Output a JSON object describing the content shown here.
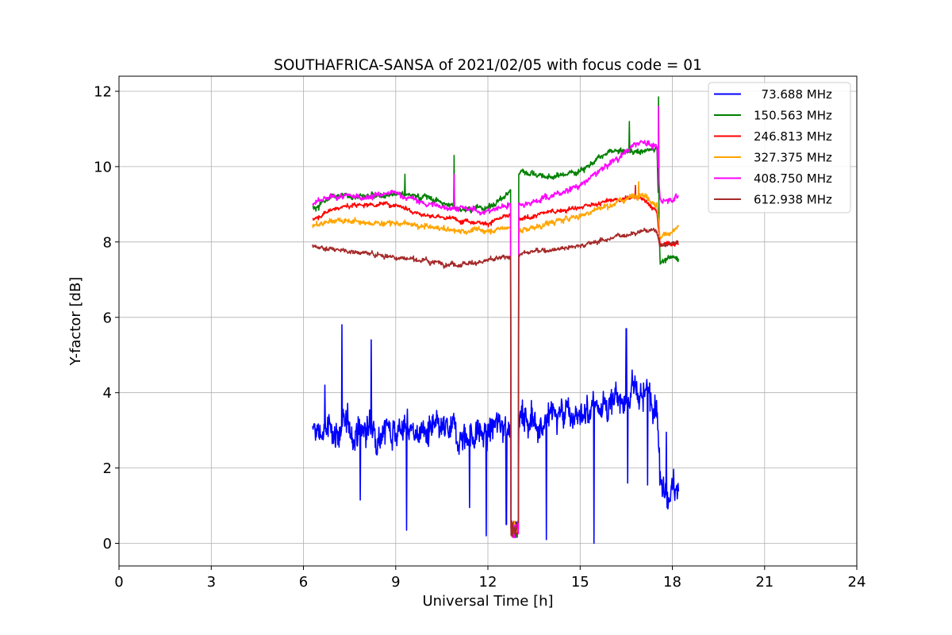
{
  "chart_data": {
    "type": "line",
    "title": "SOUTHAFRICA-SANSA of 2021/02/05 with focus code = 01",
    "xlabel": "Universal Time [h]",
    "ylabel": "Y-factor [dB]",
    "xlim": [
      0,
      24
    ],
    "ylim": [
      -0.6,
      12.4
    ],
    "xticks": [
      0,
      3,
      6,
      9,
      12,
      15,
      18,
      21,
      24
    ],
    "yticks": [
      0,
      2,
      4,
      6,
      8,
      10,
      12
    ],
    "grid": true,
    "legend_position": "top-right",
    "dropout": {
      "start": 12.75,
      "end": 13.0
    },
    "series": [
      {
        "name": "  73.688 MHz",
        "color": "#0000ff",
        "noise": 0.55,
        "points": [
          [
            6.3,
            2.9
          ],
          [
            7.0,
            3.0
          ],
          [
            8.0,
            3.0
          ],
          [
            9.0,
            3.1
          ],
          [
            10.0,
            2.9
          ],
          [
            11.0,
            2.9
          ],
          [
            12.0,
            2.9
          ],
          [
            12.6,
            3.3
          ],
          [
            13.1,
            3.3
          ],
          [
            14.0,
            3.3
          ],
          [
            15.0,
            3.5
          ],
          [
            16.0,
            3.8
          ],
          [
            17.0,
            3.9
          ],
          [
            17.5,
            3.8
          ],
          [
            17.6,
            1.7
          ],
          [
            18.2,
            1.4
          ]
        ],
        "spikes": [
          [
            7.25,
            5.8
          ],
          [
            8.2,
            5.4
          ],
          [
            6.7,
            4.2
          ],
          [
            7.85,
            1.15
          ],
          [
            9.35,
            0.35
          ],
          [
            11.4,
            0.95
          ],
          [
            11.95,
            0.2
          ],
          [
            12.6,
            0.5
          ],
          [
            12.75,
            5.1
          ],
          [
            13.9,
            0.1
          ],
          [
            15.45,
            0.0
          ],
          [
            16.5,
            5.7
          ],
          [
            16.55,
            1.6
          ],
          [
            17.2,
            1.55
          ],
          [
            17.8,
            2.95
          ]
        ]
      },
      {
        "name": "150.563 MHz",
        "color": "#008000",
        "noise": 0.1,
        "points": [
          [
            6.3,
            8.9
          ],
          [
            7.0,
            9.2
          ],
          [
            8.0,
            9.2
          ],
          [
            9.0,
            9.3
          ],
          [
            10.0,
            9.2
          ],
          [
            11.0,
            8.9
          ],
          [
            12.0,
            8.9
          ],
          [
            12.7,
            9.3
          ],
          [
            13.1,
            9.9
          ],
          [
            14.0,
            9.7
          ],
          [
            15.0,
            9.9
          ],
          [
            16.0,
            10.4
          ],
          [
            17.0,
            10.4
          ],
          [
            17.5,
            10.5
          ],
          [
            17.6,
            7.5
          ],
          [
            18.2,
            7.6
          ]
        ],
        "spikes": [
          [
            10.9,
            10.3
          ],
          [
            9.3,
            9.8
          ],
          [
            16.6,
            11.2
          ],
          [
            17.55,
            11.85
          ],
          [
            12.9,
            0.7
          ]
        ]
      },
      {
        "name": "246.813 MHz",
        "color": "#ff0000",
        "noise": 0.08,
        "points": [
          [
            6.3,
            8.6
          ],
          [
            7.0,
            8.9
          ],
          [
            8.0,
            9.0
          ],
          [
            9.0,
            9.0
          ],
          [
            10.0,
            8.7
          ],
          [
            11.0,
            8.6
          ],
          [
            12.0,
            8.5
          ],
          [
            12.7,
            8.7
          ],
          [
            13.1,
            8.6
          ],
          [
            14.0,
            8.8
          ],
          [
            15.0,
            8.9
          ],
          [
            16.0,
            9.1
          ],
          [
            17.0,
            9.2
          ],
          [
            17.5,
            8.8
          ],
          [
            17.6,
            7.9
          ],
          [
            18.2,
            8.0
          ]
        ],
        "spikes": [
          [
            16.8,
            9.5
          ]
        ]
      },
      {
        "name": "327.375 MHz",
        "color": "#ffa500",
        "noise": 0.1,
        "points": [
          [
            6.3,
            8.4
          ],
          [
            7.0,
            8.6
          ],
          [
            8.0,
            8.5
          ],
          [
            9.0,
            8.5
          ],
          [
            10.0,
            8.4
          ],
          [
            11.0,
            8.3
          ],
          [
            12.0,
            8.3
          ],
          [
            12.7,
            8.4
          ],
          [
            13.1,
            8.3
          ],
          [
            14.0,
            8.5
          ],
          [
            15.0,
            8.7
          ],
          [
            16.0,
            9.0
          ],
          [
            17.0,
            9.3
          ],
          [
            17.5,
            9.0
          ],
          [
            17.6,
            8.1
          ],
          [
            18.2,
            8.4
          ]
        ],
        "spikes": [
          [
            16.9,
            9.6
          ]
        ]
      },
      {
        "name": "408.750 MHz",
        "color": "#ff00ff",
        "noise": 0.1,
        "points": [
          [
            6.3,
            9.0
          ],
          [
            7.0,
            9.2
          ],
          [
            8.0,
            9.2
          ],
          [
            9.0,
            9.3
          ],
          [
            10.0,
            9.0
          ],
          [
            11.0,
            8.9
          ],
          [
            12.0,
            8.8
          ],
          [
            12.7,
            9.0
          ],
          [
            13.1,
            9.0
          ],
          [
            14.0,
            9.2
          ],
          [
            15.0,
            9.5
          ],
          [
            16.0,
            10.1
          ],
          [
            17.0,
            10.7
          ],
          [
            17.5,
            10.5
          ],
          [
            17.6,
            9.1
          ],
          [
            18.2,
            9.2
          ]
        ],
        "spikes": [
          [
            10.9,
            9.8
          ],
          [
            17.55,
            11.6
          ]
        ]
      },
      {
        "name": "612.938 MHz",
        "color": "#a52a2a",
        "noise": 0.08,
        "points": [
          [
            6.3,
            7.9
          ],
          [
            7.0,
            7.8
          ],
          [
            8.0,
            7.7
          ],
          [
            9.0,
            7.6
          ],
          [
            10.0,
            7.5
          ],
          [
            11.0,
            7.4
          ],
          [
            12.0,
            7.5
          ],
          [
            12.7,
            7.6
          ],
          [
            13.1,
            7.7
          ],
          [
            14.0,
            7.8
          ],
          [
            15.0,
            7.9
          ],
          [
            16.0,
            8.1
          ],
          [
            17.0,
            8.3
          ],
          [
            17.5,
            8.3
          ],
          [
            17.6,
            7.9
          ],
          [
            18.2,
            8.0
          ]
        ],
        "spikes": []
      }
    ]
  }
}
